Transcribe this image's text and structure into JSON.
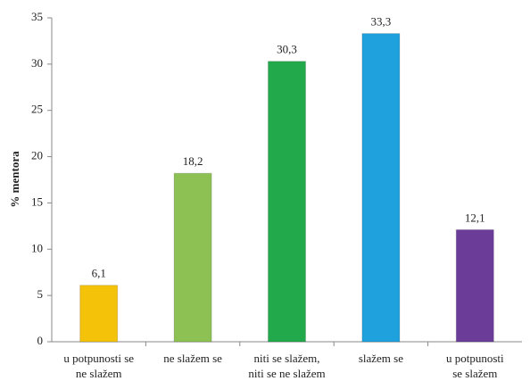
{
  "chart_data": {
    "type": "bar",
    "y_label": "% mentora",
    "categories": [
      "u potpunosti se\nne slažem",
      "ne slažem se",
      "niti se slažem,\nniti se ne slažem",
      "slažem se",
      "u potpunosti\nse slažem"
    ],
    "values": [
      6.1,
      18.2,
      30.3,
      33.3,
      12.1
    ],
    "value_labels": [
      "6,1",
      "18,2",
      "30,3",
      "33,3",
      "12,1"
    ],
    "colors": [
      "#f5c20a",
      "#8dc153",
      "#22a94c",
      "#1ea1dc",
      "#6b3c98"
    ],
    "ylim": [
      0,
      35
    ],
    "yticks": [
      0,
      5,
      10,
      15,
      20,
      25,
      30,
      35
    ],
    "grid": false
  }
}
